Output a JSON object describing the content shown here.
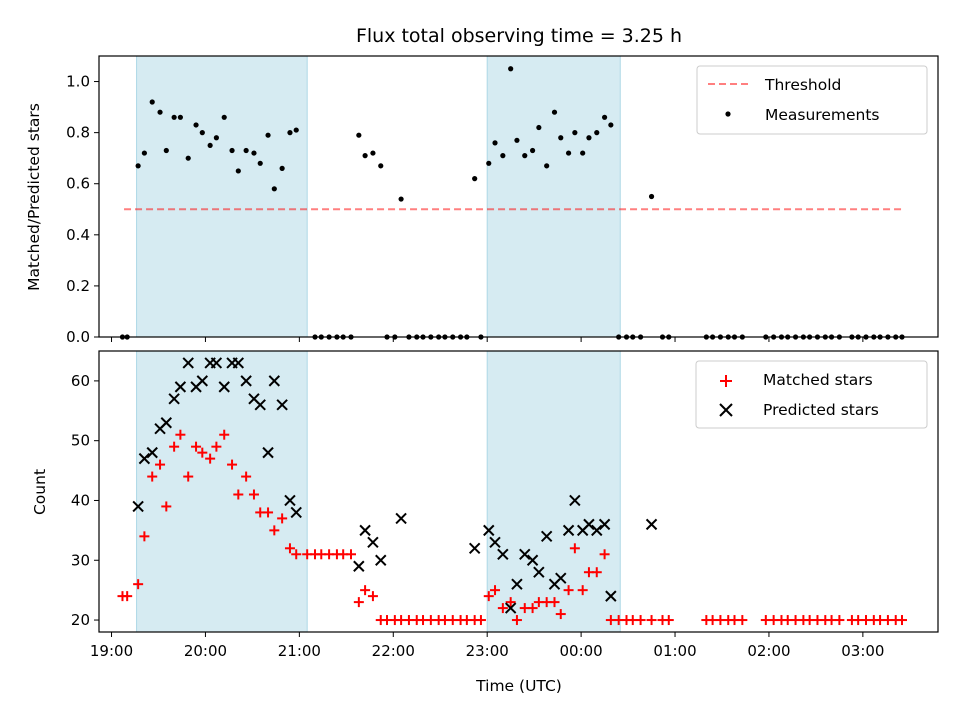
{
  "title": "Flux total observing time = 3.25 h",
  "colors": {
    "shade": "#add8e6",
    "threshold": "#ff0000",
    "measurements": "#000000",
    "matched": "#ff0000",
    "predicted": "#000000"
  },
  "chart_data": [
    {
      "type": "scatter",
      "ylabel": "Matched/Predicted stars",
      "ylim": [
        0,
        1.1
      ],
      "yticks": [
        "0.0",
        "0.2",
        "0.4",
        "0.6",
        "0.8",
        "1.0"
      ],
      "xlim": [
        "18:52",
        "03:48"
      ],
      "shaded_intervals": [
        [
          "19:16",
          "21:05"
        ],
        [
          "23:00",
          "00:25"
        ]
      ],
      "legend": {
        "location": "upper right",
        "entries": [
          "Threshold",
          "Measurements"
        ]
      },
      "threshold": {
        "name": "Threshold",
        "y": 0.5,
        "x_start": "19:08",
        "x_end": "03:25",
        "style": "dashed"
      },
      "series": [
        {
          "name": "Measurements",
          "points": [
            [
              "19:07",
              0
            ],
            [
              "19:10",
              0
            ],
            [
              "19:17",
              0.67
            ],
            [
              "19:21",
              0.72
            ],
            [
              "19:26",
              0.92
            ],
            [
              "19:31",
              0.88
            ],
            [
              "19:35",
              0.73
            ],
            [
              "19:40",
              0.86
            ],
            [
              "19:44",
              0.86
            ],
            [
              "19:49",
              0.7
            ],
            [
              "19:54",
              0.83
            ],
            [
              "19:58",
              0.8
            ],
            [
              "20:03",
              0.75
            ],
            [
              "20:07",
              0.78
            ],
            [
              "20:12",
              0.86
            ],
            [
              "20:17",
              0.73
            ],
            [
              "20:21",
              0.65
            ],
            [
              "20:26",
              0.73
            ],
            [
              "20:31",
              0.72
            ],
            [
              "20:35",
              0.68
            ],
            [
              "20:40",
              0.79
            ],
            [
              "20:44",
              0.58
            ],
            [
              "20:49",
              0.66
            ],
            [
              "20:54",
              0.8
            ],
            [
              "20:58",
              0.81
            ],
            [
              "21:10",
              0
            ],
            [
              "21:14",
              0
            ],
            [
              "21:19",
              0
            ],
            [
              "21:24",
              0
            ],
            [
              "21:28",
              0
            ],
            [
              "21:33",
              0
            ],
            [
              "21:38",
              0.79
            ],
            [
              "21:42",
              0.71
            ],
            [
              "21:47",
              0.72
            ],
            [
              "21:52",
              0.67
            ],
            [
              "21:56",
              0
            ],
            [
              "22:01",
              0
            ],
            [
              "22:05",
              0.54
            ],
            [
              "22:10",
              0
            ],
            [
              "22:15",
              0
            ],
            [
              "22:19",
              0
            ],
            [
              "22:24",
              0
            ],
            [
              "22:29",
              0
            ],
            [
              "22:33",
              0
            ],
            [
              "22:38",
              0
            ],
            [
              "22:43",
              0
            ],
            [
              "22:47",
              0
            ],
            [
              "22:52",
              0.62
            ],
            [
              "22:56",
              0
            ],
            [
              "23:01",
              0.68
            ],
            [
              "23:05",
              0.76
            ],
            [
              "23:10",
              0.71
            ],
            [
              "23:15",
              1.05
            ],
            [
              "23:19",
              0.77
            ],
            [
              "23:24",
              0.71
            ],
            [
              "23:29",
              0.73
            ],
            [
              "23:33",
              0.82
            ],
            [
              "23:38",
              0.67
            ],
            [
              "23:43",
              0.88
            ],
            [
              "23:47",
              0.78
            ],
            [
              "23:52",
              0.72
            ],
            [
              "23:56",
              0.8
            ],
            [
              "00:01",
              0.72
            ],
            [
              "00:05",
              0.78
            ],
            [
              "00:10",
              0.8
            ],
            [
              "00:15",
              0.86
            ],
            [
              "00:19",
              0.83
            ],
            [
              "00:24",
              0
            ],
            [
              "00:29",
              0
            ],
            [
              "00:33",
              0
            ],
            [
              "00:38",
              0
            ],
            [
              "00:45",
              0.55
            ],
            [
              "00:52",
              0
            ],
            [
              "00:56",
              0
            ],
            [
              "01:20",
              0
            ],
            [
              "01:24",
              0
            ],
            [
              "01:29",
              0
            ],
            [
              "01:34",
              0
            ],
            [
              "01:38",
              0
            ],
            [
              "01:43",
              0
            ],
            [
              "01:58",
              0
            ],
            [
              "02:03",
              0
            ],
            [
              "02:08",
              0
            ],
            [
              "02:12",
              0
            ],
            [
              "02:17",
              0
            ],
            [
              "02:22",
              0
            ],
            [
              "02:26",
              0
            ],
            [
              "02:31",
              0
            ],
            [
              "02:36",
              0
            ],
            [
              "02:40",
              0
            ],
            [
              "02:45",
              0
            ],
            [
              "02:53",
              0
            ],
            [
              "02:57",
              0
            ],
            [
              "03:02",
              0
            ],
            [
              "03:07",
              0
            ],
            [
              "03:11",
              0
            ],
            [
              "03:16",
              0
            ],
            [
              "03:21",
              0
            ],
            [
              "03:25",
              0
            ]
          ]
        }
      ]
    },
    {
      "type": "scatter",
      "xlabel": "Time (UTC)",
      "ylabel": "Count",
      "ylim": [
        18,
        65
      ],
      "yticks": [
        "20",
        "30",
        "40",
        "50",
        "60"
      ],
      "xlim": [
        "18:52",
        "03:48"
      ],
      "xticks": [
        "19:00",
        "20:00",
        "21:00",
        "22:00",
        "23:00",
        "00:00",
        "01:00",
        "02:00",
        "03:00"
      ],
      "shaded_intervals": [
        [
          "19:16",
          "21:05"
        ],
        [
          "23:00",
          "00:25"
        ]
      ],
      "legend": {
        "location": "upper right",
        "entries": [
          "Matched stars",
          "Predicted stars"
        ]
      },
      "series": [
        {
          "name": "Matched stars",
          "marker": "+",
          "points": [
            [
              "19:07",
              24
            ],
            [
              "19:10",
              24
            ],
            [
              "19:17",
              26
            ],
            [
              "19:21",
              34
            ],
            [
              "19:26",
              44
            ],
            [
              "19:31",
              46
            ],
            [
              "19:35",
              39
            ],
            [
              "19:40",
              49
            ],
            [
              "19:44",
              51
            ],
            [
              "19:49",
              44
            ],
            [
              "19:54",
              49
            ],
            [
              "19:58",
              48
            ],
            [
              "20:03",
              47
            ],
            [
              "20:07",
              49
            ],
            [
              "20:12",
              51
            ],
            [
              "20:17",
              46
            ],
            [
              "20:21",
              41
            ],
            [
              "20:26",
              44
            ],
            [
              "20:31",
              41
            ],
            [
              "20:35",
              38
            ],
            [
              "20:40",
              38
            ],
            [
              "20:44",
              35
            ],
            [
              "20:49",
              37
            ],
            [
              "20:54",
              32
            ],
            [
              "20:58",
              31
            ],
            [
              "21:05",
              31
            ],
            [
              "21:10",
              31
            ],
            [
              "21:14",
              31
            ],
            [
              "21:19",
              31
            ],
            [
              "21:24",
              31
            ],
            [
              "21:28",
              31
            ],
            [
              "21:33",
              31
            ],
            [
              "21:38",
              23
            ],
            [
              "21:42",
              25
            ],
            [
              "21:47",
              24
            ],
            [
              "21:52",
              20
            ],
            [
              "21:56",
              20
            ],
            [
              "22:01",
              20
            ],
            [
              "22:05",
              20
            ],
            [
              "22:10",
              20
            ],
            [
              "22:15",
              20
            ],
            [
              "22:19",
              20
            ],
            [
              "22:24",
              20
            ],
            [
              "22:29",
              20
            ],
            [
              "22:33",
              20
            ],
            [
              "22:38",
              20
            ],
            [
              "22:43",
              20
            ],
            [
              "22:47",
              20
            ],
            [
              "22:52",
              20
            ],
            [
              "22:56",
              20
            ],
            [
              "23:01",
              24
            ],
            [
              "23:05",
              25
            ],
            [
              "23:10",
              22
            ],
            [
              "23:15",
              23
            ],
            [
              "23:19",
              20
            ],
            [
              "23:24",
              22
            ],
            [
              "23:29",
              22
            ],
            [
              "23:33",
              23
            ],
            [
              "23:38",
              23
            ],
            [
              "23:43",
              23
            ],
            [
              "23:47",
              21
            ],
            [
              "23:52",
              25
            ],
            [
              "23:56",
              32
            ],
            [
              "00:01",
              25
            ],
            [
              "00:05",
              28
            ],
            [
              "00:10",
              28
            ],
            [
              "00:15",
              31
            ],
            [
              "00:19",
              20
            ],
            [
              "00:24",
              20
            ],
            [
              "00:29",
              20
            ],
            [
              "00:33",
              20
            ],
            [
              "00:38",
              20
            ],
            [
              "00:45",
              20
            ],
            [
              "00:52",
              20
            ],
            [
              "00:56",
              20
            ],
            [
              "01:20",
              20
            ],
            [
              "01:24",
              20
            ],
            [
              "01:29",
              20
            ],
            [
              "01:34",
              20
            ],
            [
              "01:38",
              20
            ],
            [
              "01:43",
              20
            ],
            [
              "01:58",
              20
            ],
            [
              "02:03",
              20
            ],
            [
              "02:08",
              20
            ],
            [
              "02:12",
              20
            ],
            [
              "02:17",
              20
            ],
            [
              "02:22",
              20
            ],
            [
              "02:26",
              20
            ],
            [
              "02:31",
              20
            ],
            [
              "02:36",
              20
            ],
            [
              "02:40",
              20
            ],
            [
              "02:45",
              20
            ],
            [
              "02:53",
              20
            ],
            [
              "02:57",
              20
            ],
            [
              "03:02",
              20
            ],
            [
              "03:07",
              20
            ],
            [
              "03:11",
              20
            ],
            [
              "03:16",
              20
            ],
            [
              "03:21",
              20
            ],
            [
              "03:25",
              20
            ]
          ]
        },
        {
          "name": "Predicted stars",
          "marker": "x",
          "points": [
            [
              "19:17",
              39
            ],
            [
              "19:21",
              47
            ],
            [
              "19:26",
              48
            ],
            [
              "19:31",
              52
            ],
            [
              "19:35",
              53
            ],
            [
              "19:40",
              57
            ],
            [
              "19:44",
              59
            ],
            [
              "19:49",
              63
            ],
            [
              "19:54",
              59
            ],
            [
              "19:58",
              60
            ],
            [
              "20:03",
              63
            ],
            [
              "20:07",
              63
            ],
            [
              "20:12",
              59
            ],
            [
              "20:17",
              63
            ],
            [
              "20:21",
              63
            ],
            [
              "20:26",
              60
            ],
            [
              "20:31",
              57
            ],
            [
              "20:35",
              56
            ],
            [
              "20:40",
              48
            ],
            [
              "20:44",
              60
            ],
            [
              "20:49",
              56
            ],
            [
              "20:54",
              40
            ],
            [
              "20:58",
              38
            ],
            [
              "21:38",
              29
            ],
            [
              "21:42",
              35
            ],
            [
              "21:47",
              33
            ],
            [
              "21:52",
              30
            ],
            [
              "22:05",
              37
            ],
            [
              "22:52",
              32
            ],
            [
              "23:01",
              35
            ],
            [
              "23:05",
              33
            ],
            [
              "23:10",
              31
            ],
            [
              "23:15",
              22
            ],
            [
              "23:19",
              26
            ],
            [
              "23:24",
              31
            ],
            [
              "23:29",
              30
            ],
            [
              "23:33",
              28
            ],
            [
              "23:38",
              34
            ],
            [
              "23:43",
              26
            ],
            [
              "23:47",
              27
            ],
            [
              "23:52",
              35
            ],
            [
              "23:56",
              40
            ],
            [
              "00:01",
              35
            ],
            [
              "00:05",
              36
            ],
            [
              "00:10",
              35
            ],
            [
              "00:15",
              36
            ],
            [
              "00:19",
              24
            ],
            [
              "00:45",
              36
            ]
          ]
        }
      ]
    }
  ]
}
